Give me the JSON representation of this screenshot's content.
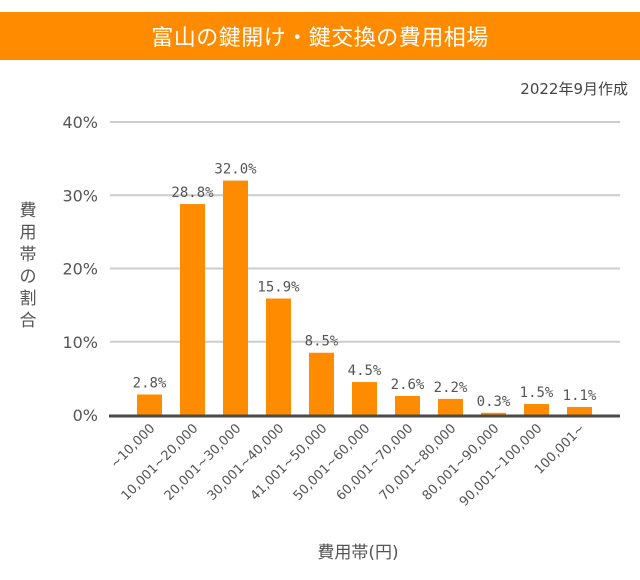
{
  "header": {
    "title": "富山の鍵開け・鍵交換の費用相場",
    "date_note": "2022年9月作成"
  },
  "colors": {
    "banner": "#ff8c00",
    "bar": "#ff8c00",
    "grid": "#cccccc",
    "axis": "#4a4a4a",
    "text": "#555555"
  },
  "chart_data": {
    "type": "bar",
    "title": "富山の鍵開け・鍵交換の費用相場",
    "xlabel": "費用帯(円)",
    "ylabel": "費用帯の割合",
    "ylabel_chars": [
      "費",
      "用",
      "帯",
      "の",
      "割",
      "合"
    ],
    "categories": [
      "~10,000",
      "10,001~20,000",
      "20,001~30,000",
      "30,001~40,000",
      "41,001~50,000",
      "50,001~60,000",
      "60,001~70,000",
      "70,001~80,000",
      "80,001~90,000",
      "90,001~100,000",
      "100,001~"
    ],
    "values": [
      2.8,
      28.8,
      32.0,
      15.9,
      8.5,
      4.5,
      2.6,
      2.2,
      0.3,
      1.5,
      1.1
    ],
    "value_labels": [
      "2.8%",
      "28.8%",
      "32.0%",
      "15.9%",
      "8.5%",
      "4.5%",
      "2.6%",
      "2.2%",
      "0.3%",
      "1.5%",
      "1.1%"
    ],
    "yticks": [
      0,
      10,
      20,
      30,
      40
    ],
    "ytick_labels": [
      "0%",
      "10%",
      "20%",
      "30%",
      "40%"
    ],
    "ylim": [
      0,
      40
    ],
    "grid": true,
    "legend": "none"
  }
}
